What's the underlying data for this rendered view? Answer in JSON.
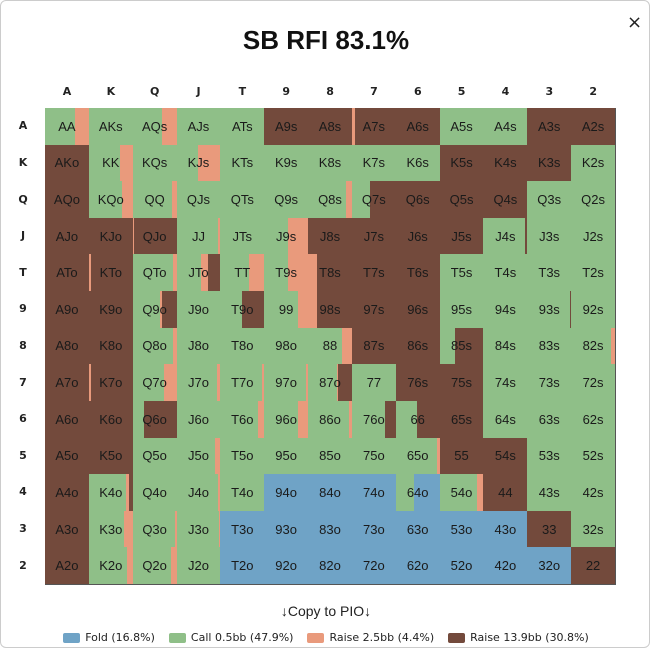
{
  "title": "SB RFI 83.1%",
  "close_label": "×",
  "ranks": [
    "A",
    "K",
    "Q",
    "J",
    "T",
    "9",
    "8",
    "7",
    "6",
    "5",
    "4",
    "3",
    "2"
  ],
  "colors": {
    "F": "#6fa3c6",
    "C": "#8fbf88",
    "R": "#e99a7c",
    "B": "#734a3c"
  },
  "copy_label": "↓Copy to PIO↓",
  "legend": [
    {
      "key": "F",
      "label": "Fold (16.8%)"
    },
    {
      "key": "C",
      "label": "Call 0.5bb (47.9%)"
    },
    {
      "key": "R",
      "label": "Raise 2.5bb (4.4%)"
    },
    {
      "key": "B",
      "label": "Raise 13.9bb (30.8%)"
    }
  ],
  "grid": [
    [
      {
        "h": "AA",
        "m": "C68 R32"
      },
      {
        "h": "AKs",
        "m": "C100"
      },
      {
        "h": "AQs",
        "m": "C67 R33"
      },
      {
        "h": "AJs",
        "m": "C100"
      },
      {
        "h": "ATs",
        "m": "C100"
      },
      {
        "h": "A9s",
        "m": "B100"
      },
      {
        "h": "A8s",
        "m": "B100"
      },
      {
        "h": "A7s",
        "m": "R6 B94"
      },
      {
        "h": "A6s",
        "m": "B100"
      },
      {
        "h": "A5s",
        "m": "C100"
      },
      {
        "h": "A4s",
        "m": "C100"
      },
      {
        "h": "A3s",
        "m": "B100"
      },
      {
        "h": "A2s",
        "m": "B100"
      }
    ],
    [
      {
        "h": "AKo",
        "m": "B100"
      },
      {
        "h": "KK",
        "m": "C70 R30"
      },
      {
        "h": "KQs",
        "m": "C100"
      },
      {
        "h": "KJs",
        "m": "C50 R50"
      },
      {
        "h": "KTs",
        "m": "C100"
      },
      {
        "h": "K9s",
        "m": "C100"
      },
      {
        "h": "K8s",
        "m": "C100"
      },
      {
        "h": "K7s",
        "m": "C100"
      },
      {
        "h": "K6s",
        "m": "C100"
      },
      {
        "h": "K5s",
        "m": "B100"
      },
      {
        "h": "K4s",
        "m": "B100"
      },
      {
        "h": "K3s",
        "m": "B100"
      },
      {
        "h": "K2s",
        "m": "C100"
      }
    ],
    [
      {
        "h": "AQo",
        "m": "B100"
      },
      {
        "h": "KQo",
        "m": "C76 R24"
      },
      {
        "h": "QQ",
        "m": "C90 R10"
      },
      {
        "h": "QJs",
        "m": "C100"
      },
      {
        "h": "QTs",
        "m": "C100"
      },
      {
        "h": "Q9s",
        "m": "C100"
      },
      {
        "h": "Q8s",
        "m": "C86 R14"
      },
      {
        "h": "Q7s",
        "m": "C42 B58"
      },
      {
        "h": "Q6s",
        "m": "B100"
      },
      {
        "h": "Q5s",
        "m": "B100"
      },
      {
        "h": "Q4s",
        "m": "B100"
      },
      {
        "h": "Q3s",
        "m": "C100"
      },
      {
        "h": "Q2s",
        "m": "C100"
      }
    ],
    [
      {
        "h": "AJo",
        "m": "B100"
      },
      {
        "h": "KJo",
        "m": "B100"
      },
      {
        "h": "QJo",
        "m": "R4 B96"
      },
      {
        "h": "JJ",
        "m": "C95 R5"
      },
      {
        "h": "JTs",
        "m": "C100"
      },
      {
        "h": "J9s",
        "m": "C55 R45"
      },
      {
        "h": "J8s",
        "m": "B100"
      },
      {
        "h": "J7s",
        "m": "B100"
      },
      {
        "h": "J6s",
        "m": "B100"
      },
      {
        "h": "J5s",
        "m": "B100"
      },
      {
        "h": "J4s",
        "m": "C95 B5"
      },
      {
        "h": "J3s",
        "m": "C100"
      },
      {
        "h": "J2s",
        "m": "C100"
      }
    ],
    [
      {
        "h": "ATo",
        "m": "B100"
      },
      {
        "h": "KTo",
        "m": "R5 B95"
      },
      {
        "h": "QTo",
        "m": "C92 R8"
      },
      {
        "h": "JTo",
        "m": "C55 R16 B29"
      },
      {
        "h": "TT",
        "m": "C65 R35"
      },
      {
        "h": "T9s",
        "m": "C55 R45"
      },
      {
        "h": "T8s",
        "m": "R20 B80"
      },
      {
        "h": "T7s",
        "m": "B100"
      },
      {
        "h": "T6s",
        "m": "B100"
      },
      {
        "h": "T5s",
        "m": "C100"
      },
      {
        "h": "T4s",
        "m": "C100"
      },
      {
        "h": "T3s",
        "m": "C100"
      },
      {
        "h": "T2s",
        "m": "C100"
      }
    ],
    [
      {
        "h": "A9o",
        "m": "B100"
      },
      {
        "h": "K9o",
        "m": "B100"
      },
      {
        "h": "Q9o",
        "m": "C63 R5 B32"
      },
      {
        "h": "J9o",
        "m": "C100"
      },
      {
        "h": "T9o",
        "m": "C50 B50"
      },
      {
        "h": "99",
        "m": "C76 R24"
      },
      {
        "h": "98s",
        "m": "R20 B80"
      },
      {
        "h": "97s",
        "m": "B100"
      },
      {
        "h": "96s",
        "m": "B100"
      },
      {
        "h": "95s",
        "m": "C100"
      },
      {
        "h": "94s",
        "m": "C100"
      },
      {
        "h": "93s",
        "m": "C98 B2"
      },
      {
        "h": "92s",
        "m": "C100"
      }
    ],
    [
      {
        "h": "A8o",
        "m": "B100"
      },
      {
        "h": "K8o",
        "m": "B100"
      },
      {
        "h": "Q8o",
        "m": "C92 R8"
      },
      {
        "h": "J8o",
        "m": "C100"
      },
      {
        "h": "T8o",
        "m": "C100"
      },
      {
        "h": "98o",
        "m": "C100"
      },
      {
        "h": "88",
        "m": "C78 R22"
      },
      {
        "h": "87s",
        "m": "B100"
      },
      {
        "h": "86s",
        "m": "B100"
      },
      {
        "h": "85s",
        "m": "C35 B65"
      },
      {
        "h": "84s",
        "m": "C100"
      },
      {
        "h": "83s",
        "m": "C100"
      },
      {
        "h": "82s",
        "m": "C92 R8"
      }
    ],
    [
      {
        "h": "A7o",
        "m": "B100"
      },
      {
        "h": "K7o",
        "m": "R5 B95"
      },
      {
        "h": "Q7o",
        "m": "C72 R28"
      },
      {
        "h": "J7o",
        "m": "C93 R7"
      },
      {
        "h": "T7o",
        "m": "C95 R5"
      },
      {
        "h": "97o",
        "m": "C95 R5"
      },
      {
        "h": "87o",
        "m": "C65 R3 B32"
      },
      {
        "h": "77",
        "m": "C100"
      },
      {
        "h": "76s",
        "m": "B100"
      },
      {
        "h": "75s",
        "m": "B100"
      },
      {
        "h": "74s",
        "m": "C100"
      },
      {
        "h": "73s",
        "m": "C100"
      },
      {
        "h": "72s",
        "m": "C100"
      }
    ],
    [
      {
        "h": "A6o",
        "m": "B100"
      },
      {
        "h": "K6o",
        "m": "B100"
      },
      {
        "h": "Q6o",
        "m": "C25 B75"
      },
      {
        "h": "J6o",
        "m": "C100"
      },
      {
        "h": "T6o",
        "m": "C85 R15"
      },
      {
        "h": "96o",
        "m": "C76 R24"
      },
      {
        "h": "86o",
        "m": "C94 R6"
      },
      {
        "h": "76o",
        "m": "C76 B24"
      },
      {
        "h": "66",
        "m": "C48 B52"
      },
      {
        "h": "65s",
        "m": "B100"
      },
      {
        "h": "64s",
        "m": "C100"
      },
      {
        "h": "63s",
        "m": "C100"
      },
      {
        "h": "62s",
        "m": "C100"
      }
    ],
    [
      {
        "h": "A5o",
        "m": "B100"
      },
      {
        "h": "K5o",
        "m": "B100"
      },
      {
        "h": "Q5o",
        "m": "C100"
      },
      {
        "h": "J5o",
        "m": "C88 R12"
      },
      {
        "h": "T5o",
        "m": "C100"
      },
      {
        "h": "95o",
        "m": "C100"
      },
      {
        "h": "85o",
        "m": "C100"
      },
      {
        "h": "75o",
        "m": "C100"
      },
      {
        "h": "65o",
        "m": "C95 R5"
      },
      {
        "h": "55",
        "m": "B100"
      },
      {
        "h": "54s",
        "m": "B100"
      },
      {
        "h": "53s",
        "m": "C100"
      },
      {
        "h": "52s",
        "m": "C100"
      }
    ],
    [
      {
        "h": "A4o",
        "m": "B100"
      },
      {
        "h": "K4o",
        "m": "C85 R6 B9"
      },
      {
        "h": "Q4o",
        "m": "C100"
      },
      {
        "h": "J4o",
        "m": "C95 R5"
      },
      {
        "h": "T4o",
        "m": "C100"
      },
      {
        "h": "94o",
        "m": "F100"
      },
      {
        "h": "84o",
        "m": "F100"
      },
      {
        "h": "74o",
        "m": "F100"
      },
      {
        "h": "64o",
        "m": "C42 F58"
      },
      {
        "h": "54o",
        "m": "C86 R14"
      },
      {
        "h": "44",
        "m": "B100"
      },
      {
        "h": "43s",
        "m": "C100"
      },
      {
        "h": "42s",
        "m": "C100"
      }
    ],
    [
      {
        "h": "A3o",
        "m": "B100"
      },
      {
        "h": "K3o",
        "m": "C80 R20"
      },
      {
        "h": "Q3o",
        "m": "C97 R3"
      },
      {
        "h": "J3o",
        "m": "C97 R3"
      },
      {
        "h": "T3o",
        "m": "F100"
      },
      {
        "h": "93o",
        "m": "F100"
      },
      {
        "h": "83o",
        "m": "F100"
      },
      {
        "h": "73o",
        "m": "F100"
      },
      {
        "h": "63o",
        "m": "F100"
      },
      {
        "h": "53o",
        "m": "F100"
      },
      {
        "h": "43o",
        "m": "F100"
      },
      {
        "h": "33",
        "m": "B100"
      },
      {
        "h": "32s",
        "m": "C100"
      }
    ],
    [
      {
        "h": "A2o",
        "m": "B100"
      },
      {
        "h": "K2o",
        "m": "C88 R12"
      },
      {
        "h": "Q2o",
        "m": "C88 R12"
      },
      {
        "h": "J2o",
        "m": "C100"
      },
      {
        "h": "T2o",
        "m": "F100"
      },
      {
        "h": "92o",
        "m": "F100"
      },
      {
        "h": "82o",
        "m": "F100"
      },
      {
        "h": "72o",
        "m": "F100"
      },
      {
        "h": "62o",
        "m": "F100"
      },
      {
        "h": "52o",
        "m": "F100"
      },
      {
        "h": "42o",
        "m": "F100"
      },
      {
        "h": "32o",
        "m": "F100"
      },
      {
        "h": "22",
        "m": "B100"
      }
    ]
  ]
}
